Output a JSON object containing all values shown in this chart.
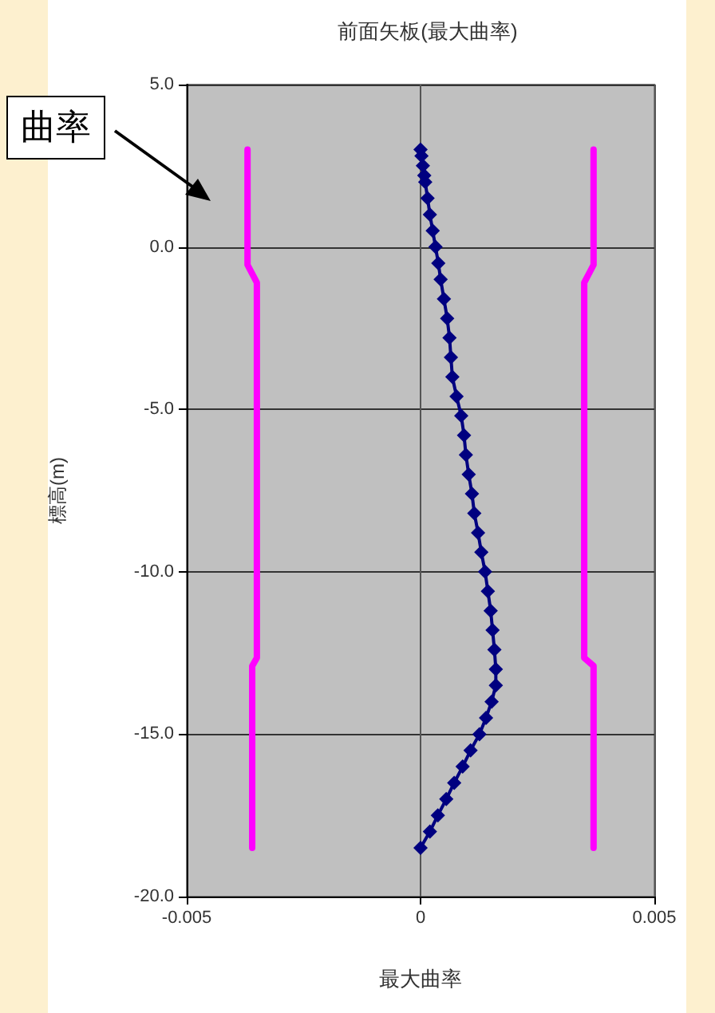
{
  "chart_data": {
    "type": "line",
    "title": "前面矢板(最大曲率)",
    "xlabel": "最大曲率",
    "ylabel": "標高(m)",
    "annotations": [
      "曲率"
    ],
    "xlim": [
      -0.005,
      0.005
    ],
    "xticks": [
      -0.005,
      0,
      0.005
    ],
    "ylim": [
      -20,
      5
    ],
    "yticks": [
      {
        "value": 5,
        "label": "5.0"
      },
      {
        "value": 0,
        "label": "0.0"
      },
      {
        "value": -5,
        "label": "-5.0"
      },
      {
        "value": -10,
        "label": "-10.0"
      },
      {
        "value": -15,
        "label": "-15.0"
      },
      {
        "value": -20,
        "label": "-20.0"
      }
    ],
    "grid": true,
    "series": [
      {
        "color": "#ff00ff",
        "marker": "none",
        "x": [
          -0.0037,
          -0.0037,
          -0.0035,
          -0.0035,
          -0.0036,
          -0.0036
        ],
        "values": [
          3.0,
          -0.55,
          -1.1,
          -12.65,
          -12.9,
          -18.5
        ]
      },
      {
        "color": "#ff00ff",
        "marker": "none",
        "x": [
          0.0037,
          0.0037,
          0.0035,
          0.0035,
          0.0037,
          0.0037
        ],
        "values": [
          3.0,
          -0.55,
          -1.1,
          -12.65,
          -12.9,
          -18.5
        ]
      },
      {
        "color": "#000080",
        "marker": "diamond",
        "x": [
          0,
          2e-05,
          5e-05,
          8e-05,
          0.0001,
          0.00015,
          0.0002,
          0.00026,
          0.00032,
          0.00038,
          0.00043,
          0.0005,
          0.00057,
          0.00062,
          0.00065,
          0.00068,
          0.00077,
          0.00087,
          0.00093,
          0.00097,
          0.00103,
          0.0011,
          0.00115,
          0.00123,
          0.0013,
          0.00138,
          0.00144,
          0.0015,
          0.00154,
          0.00158,
          0.00161,
          0.00161,
          0.00152,
          0.0014,
          0.00126,
          0.00107,
          0.0009,
          0.00072,
          0.00055,
          0.00037,
          0.0002,
          0
        ],
        "values": [
          3.0,
          2.8,
          2.5,
          2.2,
          2.0,
          1.5,
          1.0,
          0.5,
          0,
          -0.5,
          -1.0,
          -1.6,
          -2.2,
          -2.8,
          -3.4,
          -4.0,
          -4.6,
          -5.2,
          -5.8,
          -6.4,
          -7.0,
          -7.6,
          -8.2,
          -8.8,
          -9.4,
          -10.0,
          -10.6,
          -11.2,
          -11.8,
          -12.4,
          -13.0,
          -13.5,
          -14.0,
          -14.5,
          -15.0,
          -15.5,
          -16.0,
          -16.5,
          -17.0,
          -17.5,
          -18.0,
          -18.5
        ]
      }
    ]
  }
}
